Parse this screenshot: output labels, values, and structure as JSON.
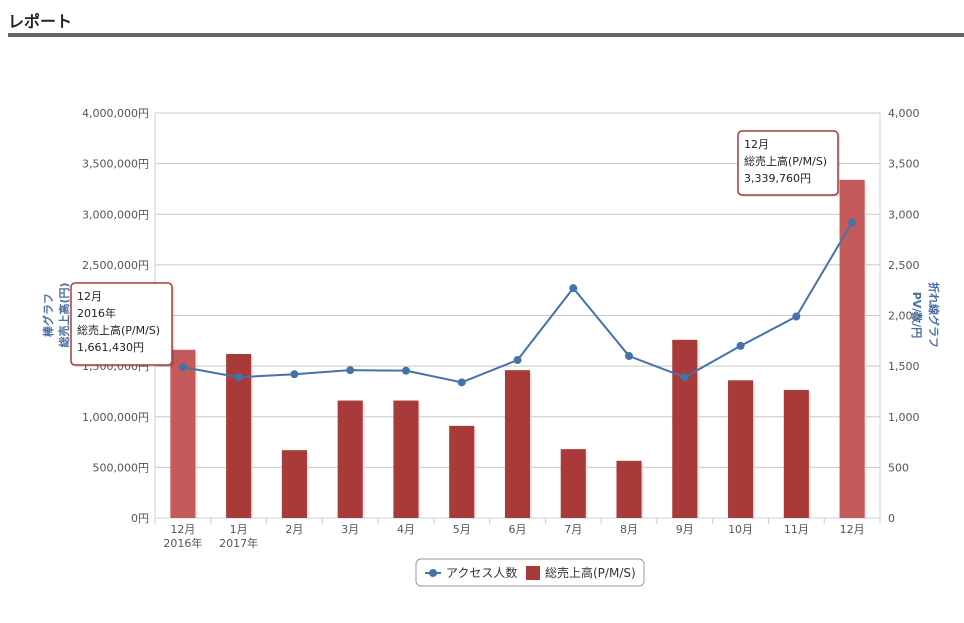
{
  "page": {
    "title": "レポート"
  },
  "chart_data": {
    "type": "bar",
    "categories": [
      "12月",
      "1月",
      "2月",
      "3月",
      "4月",
      "5月",
      "6月",
      "7月",
      "8月",
      "9月",
      "10月",
      "11月",
      "12月"
    ],
    "category_sublabels": [
      "2016年",
      "2017年",
      "",
      "",
      "",
      "",
      "",
      "",
      "",
      "",
      "",
      "",
      ""
    ],
    "series": [
      {
        "name": "総売上高(P/M/S)",
        "type": "bar",
        "axis": "left",
        "color": "#a83a3a",
        "values": [
          1661430,
          1620000,
          670000,
          1160000,
          1160000,
          910000,
          1460000,
          680000,
          565000,
          1760000,
          1360000,
          1265000,
          3339760
        ]
      },
      {
        "name": "アクセス人数",
        "type": "line",
        "axis": "right",
        "color": "#4572a7",
        "values": [
          1490,
          1390,
          1420,
          1460,
          1455,
          1340,
          1560,
          2270,
          1600,
          1390,
          1700,
          1990,
          2920
        ]
      }
    ],
    "y_left": {
      "label": "棒グラフ",
      "sublabel": "総売上高(円)",
      "min": 0,
      "max": 4000000,
      "step": 500000,
      "ticks": [
        "0円",
        "500,000円",
        "1,000,000円",
        "1,500,000円",
        "2,000,000円",
        "2,500,000円",
        "3,000,000円",
        "3,500,000円",
        "4,000,000円"
      ]
    },
    "y_right": {
      "label": "折れ線グラフ",
      "sublabel": "PV/数/円",
      "min": 0,
      "max": 4000,
      "step": 500,
      "ticks": [
        "0",
        "500",
        "1,000",
        "1,500",
        "2,000",
        "2,500",
        "3,000",
        "3,500",
        "4,000"
      ]
    },
    "grid": true,
    "legend_position": "bottom-center",
    "legend": [
      {
        "label": "アクセス人数",
        "marker": "line-circle",
        "color": "#4572a7"
      },
      {
        "label": "総売上高(P/M/S)",
        "marker": "square",
        "color": "#a83a3a"
      }
    ],
    "tooltips": [
      {
        "index": 0,
        "lines": [
          "12月",
          "2016年",
          "総売上高(P/M/S)",
          "1,661,430円"
        ]
      },
      {
        "index": 12,
        "lines": [
          "12月",
          "総売上高(P/M/S)",
          "3,339,760円"
        ]
      }
    ]
  }
}
